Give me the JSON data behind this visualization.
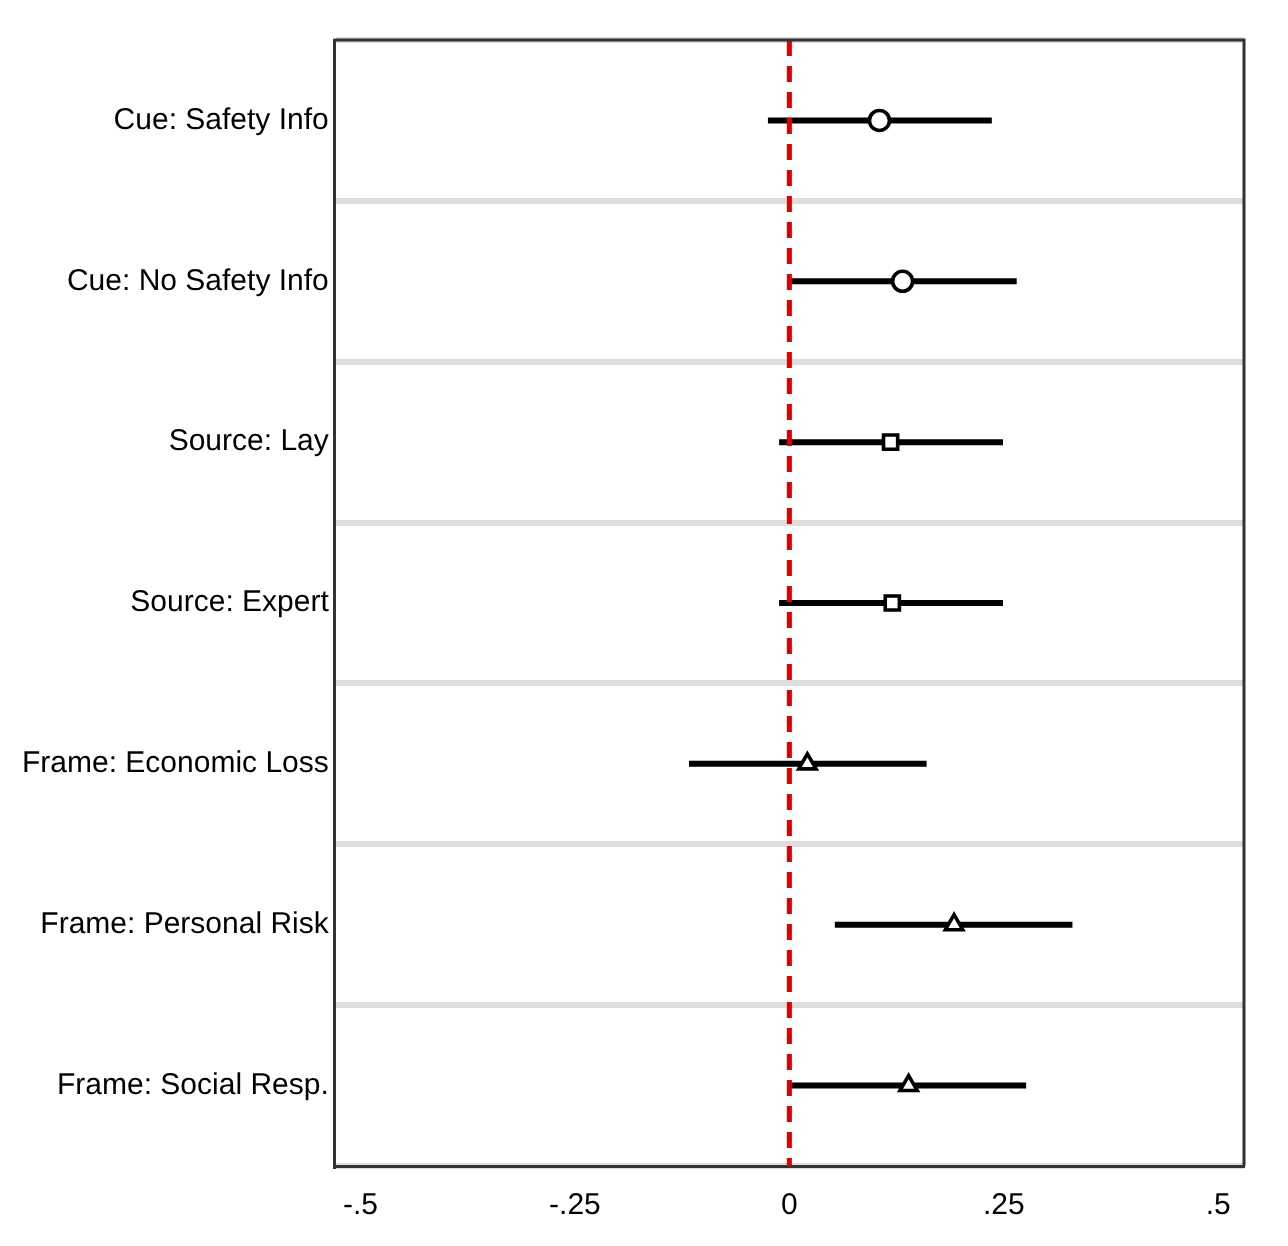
{
  "chart_data": {
    "type": "scatter",
    "orientation": "horizontal",
    "categories": [
      "Cue: Safety Info",
      "Cue: No Safety Info",
      "Source: Lay",
      "Source: Expert",
      "Frame: Economic Loss",
      "Frame: Personal Risk",
      "Frame: Social Resp."
    ],
    "series": [
      {
        "color": "#000000",
        "marker": "circle",
        "values": [
          0.105,
          0.132,
          null,
          null,
          null,
          null,
          null
        ],
        "errors": [
          [
            -0.025,
            0.236
          ],
          [
            0,
            0.265
          ],
          null,
          null,
          null,
          null,
          null
        ]
      },
      {
        "color": "#000000",
        "marker": "square",
        "values": [
          null,
          null,
          0.118,
          0.12,
          null,
          null,
          null
        ],
        "errors": [
          null,
          null,
          [
            -0.012,
            0.249
          ],
          [
            -0.012,
            0.249
          ],
          null,
          null,
          null
        ]
      },
      {
        "color": "#000000",
        "marker": "triangle",
        "values": [
          null,
          null,
          null,
          null,
          0.021,
          0.192,
          0.139
        ],
        "errors": [
          null,
          null,
          null,
          null,
          [
            -0.117,
            0.16
          ],
          [
            0.053,
            0.33
          ],
          [
            0,
            0.276
          ]
        ]
      }
    ],
    "xlim": [
      -0.53,
      0.53
    ],
    "xticks": [
      {
        "value": -0.5,
        "label": "-.5"
      },
      {
        "value": -0.25,
        "label": "-.25"
      },
      0,
      {
        "value": 0.25,
        "label": ".25"
      },
      {
        "value": 0.5,
        "label": ".5"
      }
    ],
    "grid": "y",
    "ref_lines": [
      {
        "axis": "x",
        "value": 0,
        "color": "#e00000",
        "line_style": "dashed"
      }
    ]
  }
}
